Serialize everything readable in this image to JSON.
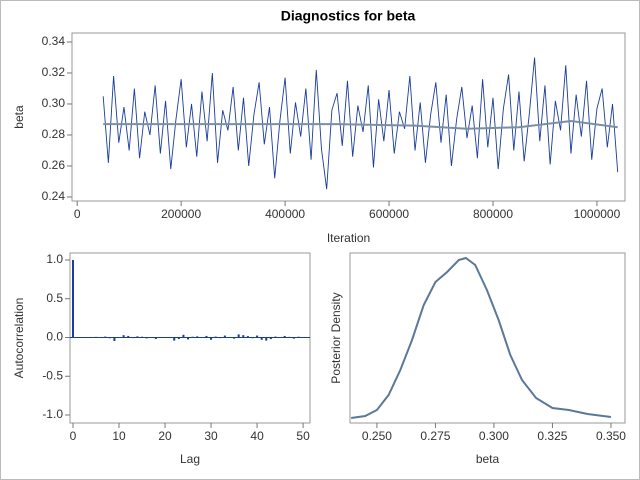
{
  "chart_data": [
    {
      "type": "line",
      "title": "Diagnostics for beta",
      "xlabel": "Iteration",
      "ylabel": "beta",
      "x": [
        50000,
        60000,
        70000,
        80000,
        90000,
        100000,
        110000,
        120000,
        130000,
        140000,
        150000,
        160000,
        170000,
        180000,
        190000,
        200000,
        210000,
        220000,
        230000,
        240000,
        250000,
        260000,
        270000,
        280000,
        290000,
        300000,
        310000,
        320000,
        330000,
        340000,
        350000,
        360000,
        370000,
        380000,
        390000,
        400000,
        410000,
        420000,
        430000,
        440000,
        450000,
        460000,
        470000,
        480000,
        490000,
        500000,
        510000,
        520000,
        530000,
        540000,
        550000,
        560000,
        570000,
        580000,
        590000,
        600000,
        610000,
        620000,
        630000,
        640000,
        650000,
        660000,
        670000,
        680000,
        690000,
        700000,
        710000,
        720000,
        730000,
        740000,
        750000,
        760000,
        770000,
        780000,
        790000,
        800000,
        810000,
        820000,
        830000,
        840000,
        850000,
        860000,
        870000,
        880000,
        890000,
        900000,
        910000,
        920000,
        930000,
        940000,
        950000,
        960000,
        970000,
        980000,
        990000,
        1000000,
        1010000,
        1020000,
        1030000,
        1040000
      ],
      "series": [
        {
          "color": "#1a3c9c",
          "values": [
            0.305,
            0.262,
            0.318,
            0.275,
            0.298,
            0.27,
            0.31,
            0.265,
            0.295,
            0.28,
            0.312,
            0.268,
            0.302,
            0.258,
            0.29,
            0.316,
            0.272,
            0.3,
            0.266,
            0.308,
            0.276,
            0.32,
            0.262,
            0.296,
            0.283,
            0.311,
            0.27,
            0.304,
            0.26,
            0.293,
            0.314,
            0.274,
            0.298,
            0.252,
            0.289,
            0.317,
            0.268,
            0.301,
            0.279,
            0.31,
            0.264,
            0.322,
            0.271,
            0.245,
            0.296,
            0.307,
            0.273,
            0.315,
            0.266,
            0.299,
            0.282,
            0.312,
            0.259,
            0.303,
            0.276,
            0.309,
            0.268,
            0.295,
            0.284,
            0.318,
            0.27,
            0.301,
            0.262,
            0.293,
            0.314,
            0.275,
            0.306,
            0.26,
            0.29,
            0.311,
            0.278,
            0.299,
            0.265,
            0.316,
            0.272,
            0.304,
            0.258,
            0.297,
            0.319,
            0.27,
            0.308,
            0.263,
            0.294,
            0.33,
            0.276,
            0.312,
            0.261,
            0.302,
            0.283,
            0.325,
            0.268,
            0.306,
            0.279,
            0.315,
            0.264,
            0.297,
            0.31,
            0.272,
            0.3,
            0.256
          ]
        },
        {
          "color": "#7a8fa6",
          "x": [
            50000,
            200000,
            350000,
            500000,
            650000,
            750000,
            850000,
            950000,
            1040000
          ],
          "values": [
            0.287,
            0.287,
            0.287,
            0.287,
            0.286,
            0.284,
            0.285,
            0.289,
            0.285
          ]
        }
      ],
      "xlim": [
        -10000,
        1054000
      ],
      "ylim": [
        0.2374,
        0.3458
      ],
      "xticks": [
        0,
        200000,
        400000,
        600000,
        800000,
        1000000
      ],
      "yticks": [
        0.24,
        0.26,
        0.28,
        {
          "value": 0.3,
          "label": "0.30"
        },
        0.32,
        0.34
      ]
    },
    {
      "type": "bar",
      "xlabel": "Lag",
      "ylabel": "Autocorrelation",
      "color": "#1a3c9c",
      "x": [
        0,
        1,
        2,
        3,
        4,
        5,
        6,
        7,
        8,
        9,
        10,
        11,
        12,
        13,
        14,
        15,
        16,
        17,
        18,
        19,
        20,
        21,
        22,
        23,
        24,
        25,
        26,
        27,
        28,
        29,
        30,
        31,
        32,
        33,
        34,
        35,
        36,
        37,
        38,
        39,
        40,
        41,
        42,
        43,
        44,
        45,
        46,
        47,
        48,
        49,
        50
      ],
      "values": [
        1,
        0.003,
        -0.002,
        0.001,
        0,
        0.008,
        -0.004,
        0.012,
        -0.01,
        -0.045,
        0.006,
        0.03,
        0.02,
        -0.008,
        0.015,
        0.01,
        -0.012,
        0.004,
        -0.02,
        0.005,
        -0.003,
        0.007,
        -0.04,
        -0.02,
        0.035,
        -0.025,
        0.01,
        0.015,
        -0.006,
        0.02,
        -0.03,
        0.012,
        -0.008,
        0.025,
        0.004,
        -0.015,
        0.04,
        0.03,
        0.018,
        -0.01,
        0.025,
        -0.03,
        -0.04,
        -0.02,
        0.012,
        -0.006,
        0.02,
        0.008,
        -0.015,
        0.01,
        -0.005
      ],
      "xlim": [
        -0.65,
        51.5
      ],
      "ylim": [
        -1.103,
        1.09
      ],
      "xticks": [
        0,
        10,
        20,
        30,
        40,
        50
      ],
      "yticks": [
        {
          "value": -1,
          "label": "-1.0"
        },
        -0.5,
        {
          "value": 0,
          "label": "0.0"
        },
        0.5,
        {
          "value": 1,
          "label": "1.0"
        }
      ]
    },
    {
      "type": "line",
      "xlabel": "beta",
      "ylabel": "Posterior Density",
      "color": "#5a7898",
      "x": [
        0.239,
        0.245,
        0.25,
        0.255,
        0.26,
        0.265,
        0.27,
        0.275,
        0.28,
        0.285,
        0.288,
        0.292,
        0.297,
        0.302,
        0.307,
        0.312,
        0.318,
        0.325,
        0.332,
        0.34,
        0.35
      ],
      "values": [
        0,
        0.4,
        1.6,
        4.6,
        9.6,
        15.6,
        22.6,
        27.2,
        29.2,
        31.6,
        32,
        30.6,
        25.6,
        19.6,
        12.6,
        7.6,
        4,
        2,
        1.6,
        0.8,
        0.2
      ],
      "xlim": [
        0.2385,
        0.356
      ],
      "ylim": [
        -1,
        33
      ],
      "xticks": [
        {
          "value": 0.25,
          "label": "0.250"
        },
        {
          "value": 0.275,
          "label": "0.275"
        },
        {
          "value": 0.3,
          "label": "0.300"
        },
        {
          "value": 0.325,
          "label": "0.325"
        },
        {
          "value": 0.35,
          "label": "0.350"
        }
      ]
    }
  ]
}
